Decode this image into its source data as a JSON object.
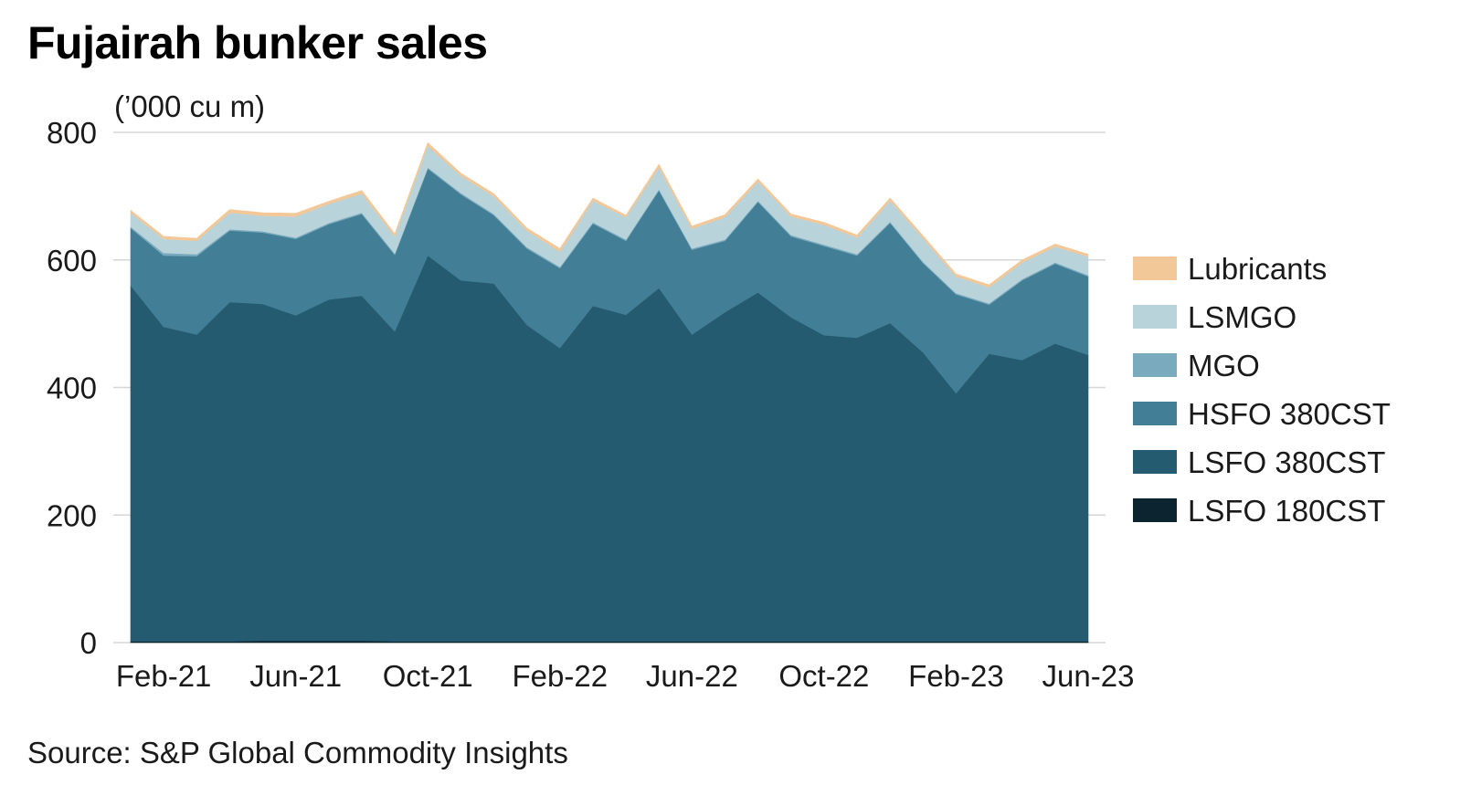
{
  "chart_data": {
    "type": "area",
    "stacked": true,
    "title": "Fujairah bunker sales",
    "unit_label": "(’000 cu m)",
    "source": "Source: S&P Global Commodity Insights",
    "xlabel": "",
    "ylabel": "",
    "ylim": [
      0,
      800
    ],
    "yticks": [
      "0",
      "200",
      "400",
      "600",
      "800"
    ],
    "ytick_values": [
      0,
      200,
      400,
      600,
      800
    ],
    "x": [
      "Jan-21",
      "Feb-21",
      "Mar-21",
      "Apr-21",
      "May-21",
      "Jun-21",
      "Jul-21",
      "Aug-21",
      "Sep-21",
      "Oct-21",
      "Nov-21",
      "Dec-21",
      "Jan-22",
      "Feb-22",
      "Mar-22",
      "Apr-22",
      "May-22",
      "Jun-22",
      "Jul-22",
      "Aug-22",
      "Sep-22",
      "Oct-22",
      "Nov-22",
      "Dec-22",
      "Jan-23",
      "Feb-23",
      "Mar-23",
      "Apr-23",
      "May-23",
      "Jun-23"
    ],
    "xtick_labels": [
      "Feb-21",
      "Jun-21",
      "Oct-21",
      "Feb-22",
      "Jun-22",
      "Oct-22",
      "Feb-23",
      "Jun-23"
    ],
    "xtick_indices": [
      1,
      5,
      9,
      13,
      17,
      21,
      25,
      29
    ],
    "grid": "horizontal",
    "legend_position": "right",
    "series": [
      {
        "name": "LSFO 180CST",
        "color": "#0b2430",
        "values": [
          2,
          2,
          2,
          2,
          3,
          3,
          3,
          3,
          2,
          2,
          2,
          2,
          2,
          2,
          2,
          2,
          2,
          2,
          2,
          2,
          2,
          2,
          2,
          2,
          2,
          2,
          2,
          2,
          2,
          2
        ]
      },
      {
        "name": "LSFO 380CST",
        "color": "#245b70",
        "values": [
          558,
          493,
          481,
          532,
          528,
          510,
          535,
          541,
          486,
          605,
          566,
          561,
          496,
          460,
          526,
          512,
          554,
          481,
          516,
          547,
          508,
          480,
          476,
          499,
          453,
          389,
          451,
          441,
          467,
          449
        ]
      },
      {
        "name": "HSFO 380CST",
        "color": "#427f96",
        "values": [
          90,
          112,
          123,
          112,
          112,
          120,
          118,
          128,
          120,
          136,
          135,
          107,
          120,
          125,
          129,
          116,
          153,
          133,
          112,
          142,
          127,
          140,
          129,
          157,
          140,
          155,
          77,
          125,
          125,
          123
        ]
      },
      {
        "name": "MGO",
        "color": "#7aaabd",
        "values": [
          2,
          4,
          3,
          2,
          2,
          2,
          2,
          2,
          2,
          2,
          2,
          2,
          2,
          2,
          2,
          2,
          2,
          2,
          2,
          2,
          2,
          2,
          2,
          2,
          2,
          2,
          2,
          2,
          2,
          2
        ]
      },
      {
        "name": "LSMGO",
        "color": "#b9d3db",
        "values": [
          22,
          22,
          21,
          26,
          24,
          33,
          30,
          30,
          27,
          34,
          27,
          28,
          26,
          24,
          34,
          35,
          34,
          31,
          35,
          30,
          29,
          31,
          26,
          33,
          37,
          26,
          25,
          26,
          25,
          29
        ]
      },
      {
        "name": "Lubricants",
        "color": "#f2c898",
        "values": [
          4,
          4,
          4,
          5,
          5,
          5,
          4,
          5,
          4,
          5,
          4,
          4,
          4,
          5,
          4,
          3,
          5,
          4,
          4,
          4,
          4,
          4,
          4,
          4,
          4,
          4,
          4,
          4,
          4,
          4
        ]
      }
    ],
    "legend_order": [
      "Lubricants",
      "LSMGO",
      "MGO",
      "HSFO 380CST",
      "LSFO 380CST",
      "LSFO 180CST"
    ]
  }
}
